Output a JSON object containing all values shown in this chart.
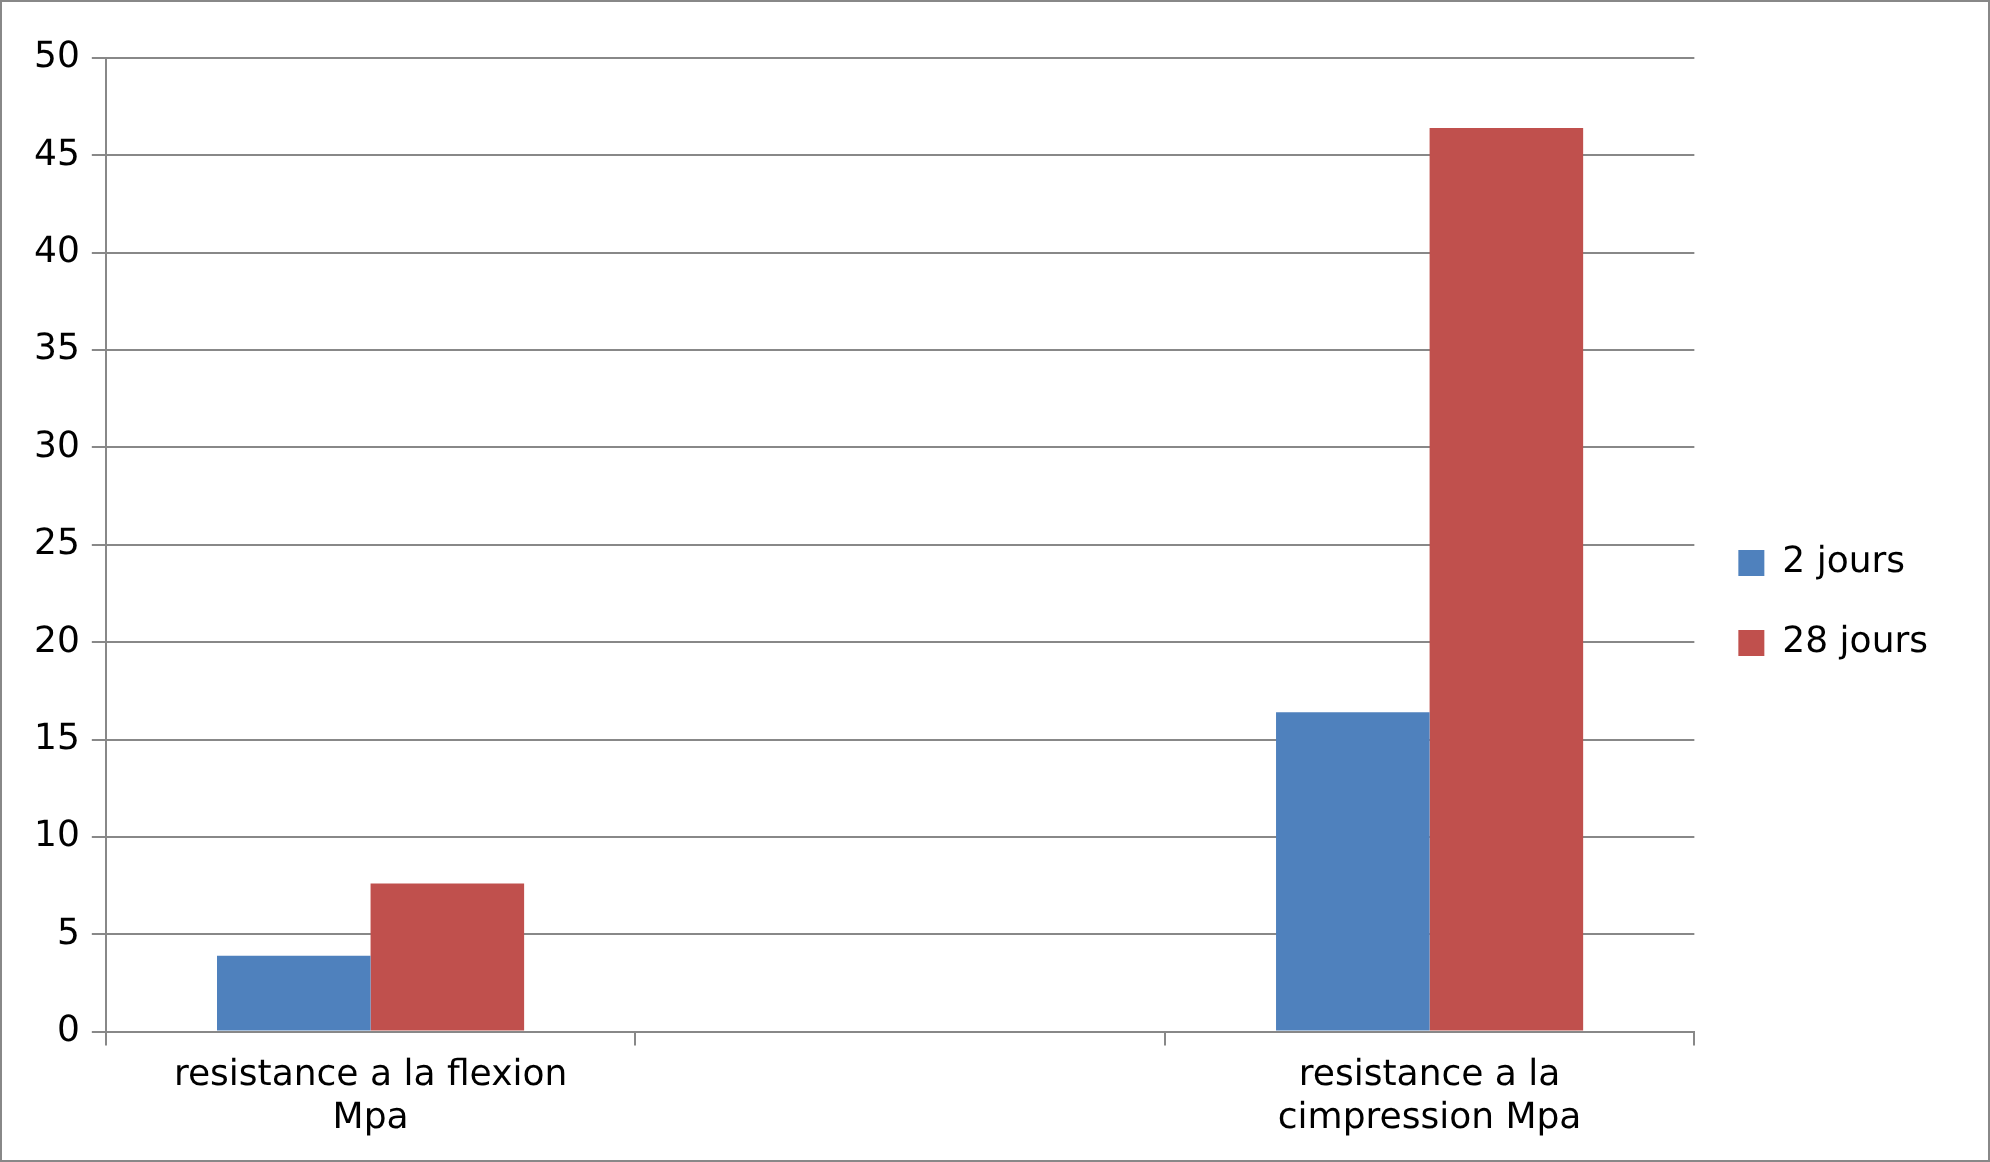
{
  "chart_data": {
    "type": "bar",
    "categories": [
      "resistance a la flexion Mpa",
      null,
      "resistance a la cimpression Mpa"
    ],
    "series": [
      {
        "name": "2 jours",
        "color": "#4f81bd",
        "values": [
          3.9,
          null,
          16.4
        ]
      },
      {
        "name": "28 jours",
        "color": "#c0504d",
        "values": [
          7.6,
          null,
          46.4
        ]
      }
    ],
    "ylim": [
      0,
      50
    ],
    "yticks": [
      0,
      5,
      10,
      15,
      20,
      25,
      30,
      35,
      40,
      45,
      50
    ],
    "grid": "y",
    "legend": "right"
  }
}
